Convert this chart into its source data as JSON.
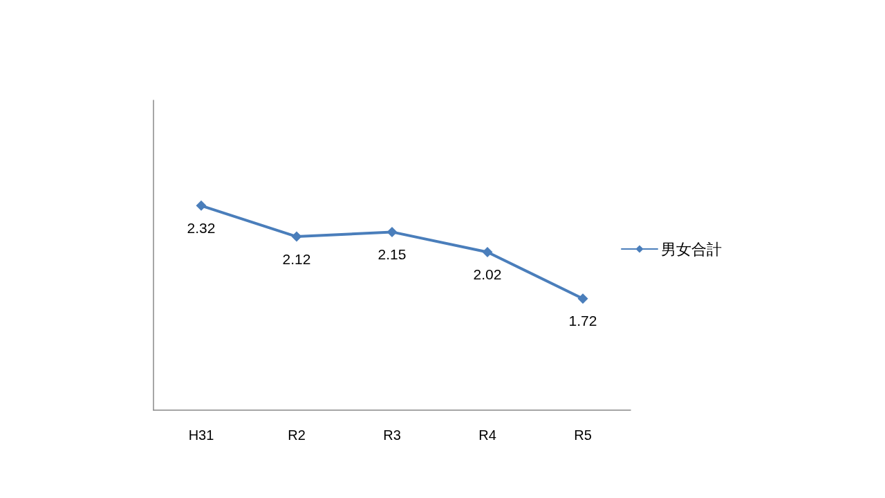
{
  "chart_data": {
    "type": "line",
    "categories": [
      "H31",
      "R2",
      "R3",
      "R4",
      "R5"
    ],
    "series": [
      {
        "name": "男女合計",
        "color": "#4a7ebb",
        "values": [
          2.32,
          2.12,
          2.15,
          2.02,
          1.72
        ]
      }
    ],
    "ylim": [
      1,
      3
    ],
    "tick_labels": "x",
    "data_labels": true,
    "legend": "right",
    "marker": "diamond",
    "line_style": "solid",
    "grid": false
  }
}
